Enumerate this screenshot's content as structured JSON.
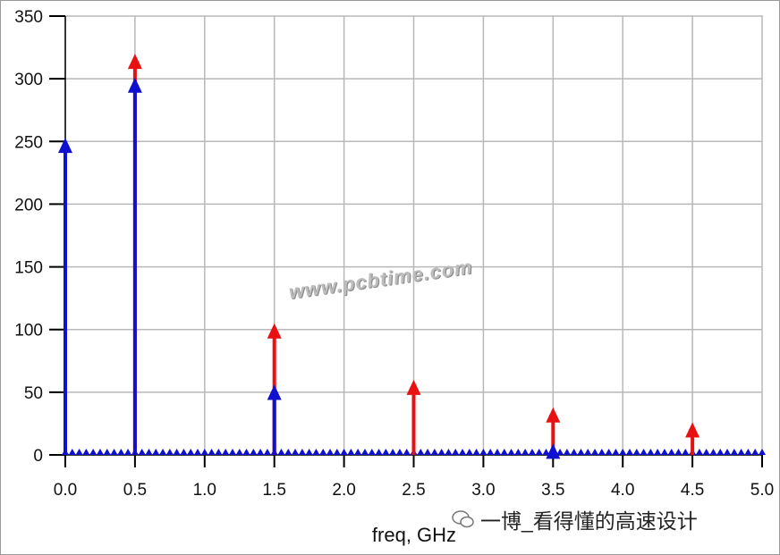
{
  "chart_data": {
    "type": "stem",
    "xlabel": "freq, GHz",
    "ylabel": "",
    "xlim": [
      0,
      5
    ],
    "ylim": [
      0,
      350
    ],
    "xticks": [
      "0.0",
      "0.5",
      "1.0",
      "1.5",
      "2.0",
      "2.5",
      "3.0",
      "3.5",
      "4.0",
      "4.5",
      "5.0"
    ],
    "yticks": [
      "0",
      "50",
      "100",
      "150",
      "200",
      "250",
      "300",
      "350"
    ],
    "grid": true,
    "series": [
      {
        "color": "#e81010",
        "x": [
          0.5,
          1.5,
          2.5,
          3.5,
          4.5
        ],
        "values": [
          320,
          105,
          60,
          38,
          26
        ]
      },
      {
        "color": "#1010d0",
        "x": [
          0.0,
          0.5,
          1.5,
          3.5
        ],
        "values": [
          253,
          301,
          56,
          9
        ],
        "baseline_marker_spacing": 0.05,
        "baseline_value": 2
      }
    ]
  },
  "watermark": "www.pcbtime.com",
  "brand": "一博_看得懂的高速设计"
}
